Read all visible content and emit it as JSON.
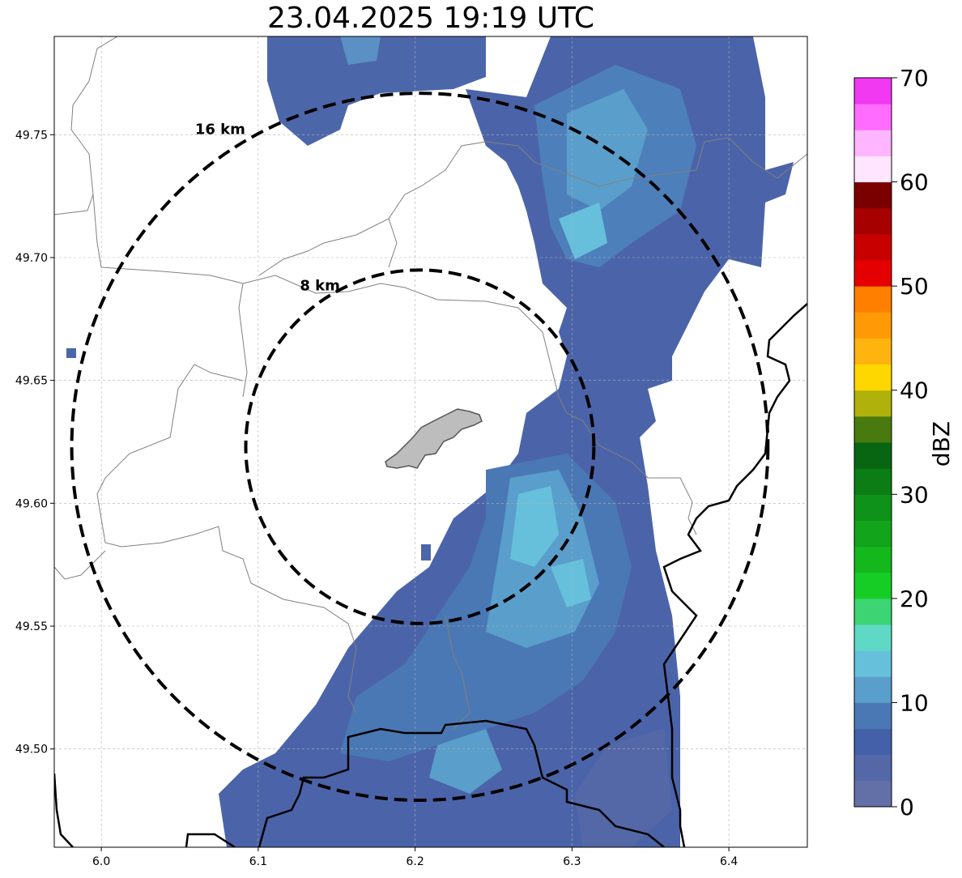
{
  "title": "23.04.2025 19:19 UTC",
  "map": {
    "lon_ticks": [
      "6.0",
      "6.1",
      "6.2",
      "6.3",
      "6.4"
    ],
    "lat_ticks": [
      "49.75",
      "49.70",
      "49.65",
      "49.60",
      "49.55",
      "49.50"
    ],
    "lon_values": [
      6.0,
      6.1,
      6.2,
      6.3,
      6.4
    ],
    "lat_values": [
      49.75,
      49.7,
      49.65,
      49.6,
      49.55,
      49.5
    ],
    "lon_range": [
      5.97,
      6.45
    ],
    "lat_range": [
      49.46,
      49.79
    ],
    "grid": true,
    "radar_center": [
      6.203,
      49.623
    ],
    "rings": [
      {
        "radius_km": 8,
        "label": "8 km"
      },
      {
        "radius_km": 16,
        "label": "16 km"
      }
    ]
  },
  "colorbar": {
    "label": "dBZ",
    "ticks": [
      "0",
      "10",
      "20",
      "30",
      "40",
      "50",
      "60",
      "70"
    ],
    "range": [
      0,
      70
    ],
    "colors": [
      "#6370a8",
      "#5468a8",
      "#4360a8",
      "#4a78b4",
      "#5a9ecb",
      "#66c0dc",
      "#60d8c6",
      "#3dd574",
      "#16cd26",
      "#14b81c",
      "#12a41a",
      "#0f9219",
      "#0b7d14",
      "#086613",
      "#487a0f",
      "#b0b10a",
      "#ffd700",
      "#ffb30f",
      "#ff9a06",
      "#ff7f00",
      "#e40000",
      "#c80000",
      "#a60000",
      "#7a0000",
      "#ffe5ff",
      "#ffb5ff",
      "#ff6cff",
      "#f039f0"
    ]
  }
}
